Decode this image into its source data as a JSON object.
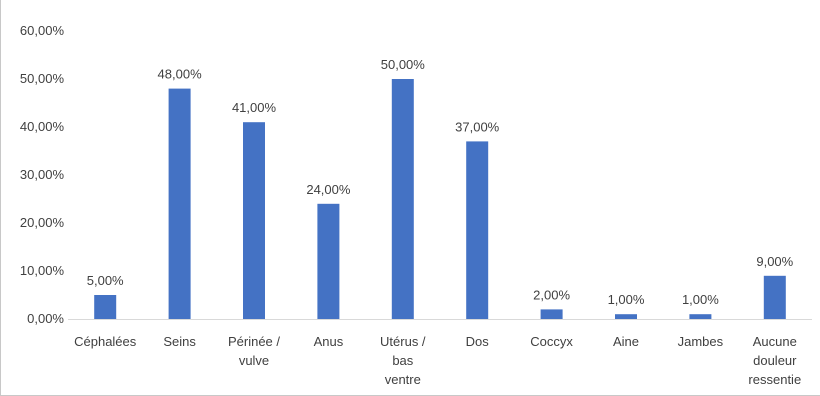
{
  "chart_data": {
    "type": "bar",
    "title": "",
    "xlabel": "",
    "ylabel": "",
    "categories": [
      [
        "Céphalées"
      ],
      [
        "Seins"
      ],
      [
        "Périnée /",
        "vulve"
      ],
      [
        "Anus"
      ],
      [
        "Utérus /",
        "bas",
        "ventre"
      ],
      [
        "Dos"
      ],
      [
        "Coccyx"
      ],
      [
        "Aine"
      ],
      [
        "Jambes"
      ],
      [
        "Aucune",
        "douleur",
        "ressentie"
      ]
    ],
    "values": [
      5,
      48,
      41,
      24,
      50,
      37,
      2,
      1,
      1,
      9
    ],
    "data_labels": [
      "5,00%",
      "48,00%",
      "41,00%",
      "24,00%",
      "50,00%",
      "37,00%",
      "2,00%",
      "1,00%",
      "1,00%",
      "9,00%"
    ],
    "ylim": [
      0,
      60
    ],
    "yticks": [
      0,
      10,
      20,
      30,
      40,
      50,
      60
    ],
    "ytick_labels": [
      "0,00%",
      "10,00%",
      "20,00%",
      "30,00%",
      "40,00%",
      "50,00%",
      "60,00%"
    ],
    "grid": false,
    "legend": "none",
    "colors": {
      "bar": "#4472C4",
      "axis": "#d9d9d9",
      "text": "#404040",
      "frame": "#c8c8c8"
    }
  }
}
